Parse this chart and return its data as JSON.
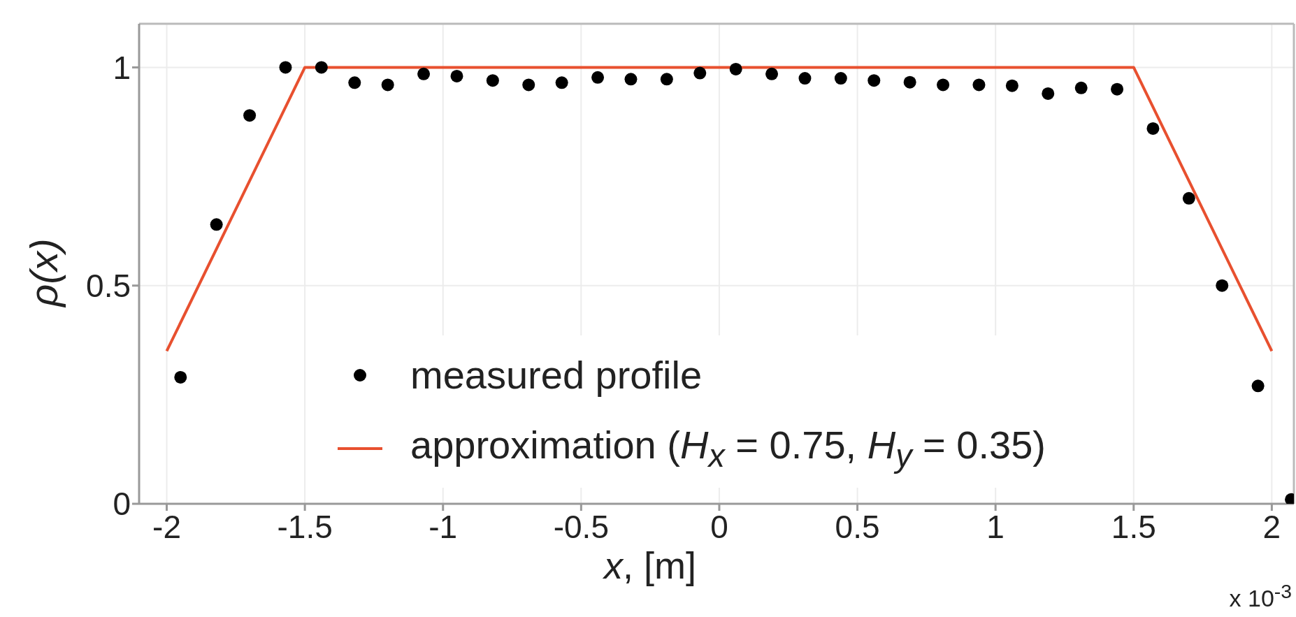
{
  "chart_data": {
    "type": "scatter",
    "xlabel": "x, [m]",
    "ylabel": "ρ(x)",
    "xlim": [
      -2.1,
      2.08
    ],
    "ylim": [
      0,
      1.1
    ],
    "xticks": [
      -2,
      -1.5,
      -1,
      -0.5,
      0,
      0.5,
      1,
      1.5,
      2
    ],
    "yticks": [
      0,
      0.5,
      1
    ],
    "grid": true,
    "legend": "bottom",
    "annotations": [
      "x 10$^{-3}$"
    ],
    "series": [
      {
        "name": "measured profile",
        "marker": "circle",
        "color": "#000000",
        "x": [
          -1.95,
          -1.82,
          -1.7,
          -1.57,
          -1.44,
          -1.32,
          -1.2,
          -1.07,
          -0.95,
          -0.82,
          -0.69,
          -0.57,
          -0.44,
          -0.32,
          -0.19,
          -0.07,
          0.06,
          0.19,
          0.31,
          0.44,
          0.56,
          0.69,
          0.81,
          0.94,
          1.06,
          1.19,
          1.31,
          1.44,
          1.57,
          1.7,
          1.82,
          1.95,
          2.07
        ],
        "values": [
          0.29,
          0.64,
          0.89,
          1.0,
          1.0,
          0.965,
          0.96,
          0.985,
          0.98,
          0.97,
          0.96,
          0.965,
          0.977,
          0.973,
          0.973,
          0.987,
          0.996,
          0.985,
          0.975,
          0.975,
          0.97,
          0.966,
          0.96,
          0.96,
          0.958,
          0.94,
          0.953,
          0.95,
          0.86,
          0.7,
          0.5,
          0.27,
          0.01
        ]
      },
      {
        "name": "approximation (H$_{x}$ = 0.75, H$_{y}$ = 0.35)",
        "type": "line",
        "marker": "none",
        "line_style": "solid",
        "color": "#e8502f",
        "x": [
          -2,
          -1.5,
          1.5,
          2
        ],
        "values": [
          0.35,
          1,
          1,
          0.35
        ]
      }
    ]
  }
}
